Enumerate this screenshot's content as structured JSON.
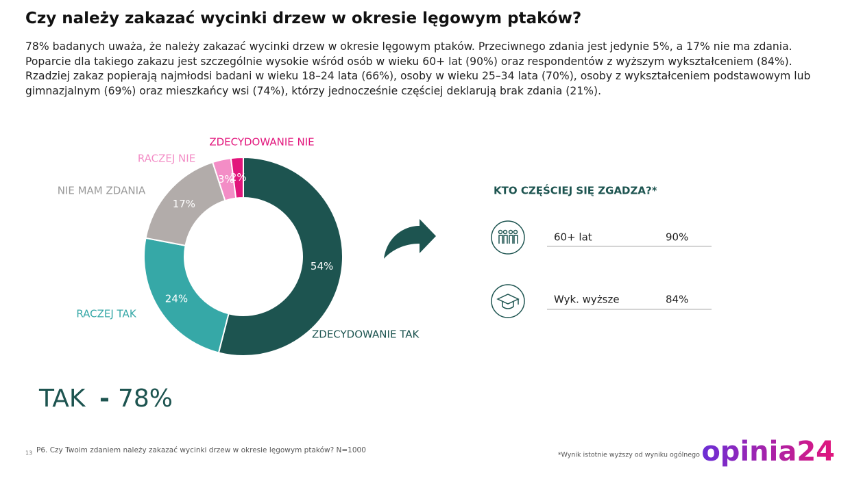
{
  "title": "Czy należy zakazać wycinki drzew w okresie lęgowym ptaków?",
  "paragraph": "78% badanych uważa, że należy zakazać wycinki drzew w okresie lęgowym ptaków. Przeciwnego zdania jest jedynie 5%, a 17% nie ma zdania. Poparcie dla takiego zakazu jest szczególnie wysokie wśród osób w wieku 60+ lat (90%) oraz respondentów z wyższym wykształceniem (84%). Rzadziej zakaz popierają najmłodsi badani w wieku 18–24 lata (66%), osoby w wieku 25–34 lata (70%), osoby z wykształceniem podstawowym lub gimnazjalnym (69%) oraz mieszkańcy wsi (74%), którzy jednocześnie częściej deklarują brak zdania (21%).",
  "chart_data": {
    "type": "donut",
    "categories": [
      "ZDECYDOWANIE TAK",
      "RACZEJ TAK",
      "NIE MAM ZDANIA",
      "RACZEJ NIE",
      "ZDECYDOWANIE NIE"
    ],
    "values": [
      54,
      24,
      17,
      3,
      2
    ],
    "value_labels": [
      "54%",
      "24%",
      "17%",
      "3%",
      "2%"
    ],
    "colors": [
      "#1d5450",
      "#36a8a7",
      "#b2acaa",
      "#f38dc6",
      "#e2167c"
    ]
  },
  "summary": {
    "label": "TAK",
    "separator": "-",
    "value": "78%"
  },
  "panel": {
    "title": "KTO CZĘŚCIEJ SIĘ ZGADZA?*",
    "rows": [
      {
        "label": "60+ lat",
        "value": "90%"
      },
      {
        "label": "Wyk. wyższe",
        "value": "84%"
      }
    ]
  },
  "footer": {
    "page": "13",
    "question": "P6. Czy Twoim zdaniem należy zakazać wycinki drzew w okresie lęgowym ptaków? N=1000",
    "note": "*Wynik istotnie wyższy od wyniku ogólnego",
    "logo": "opinia24"
  }
}
